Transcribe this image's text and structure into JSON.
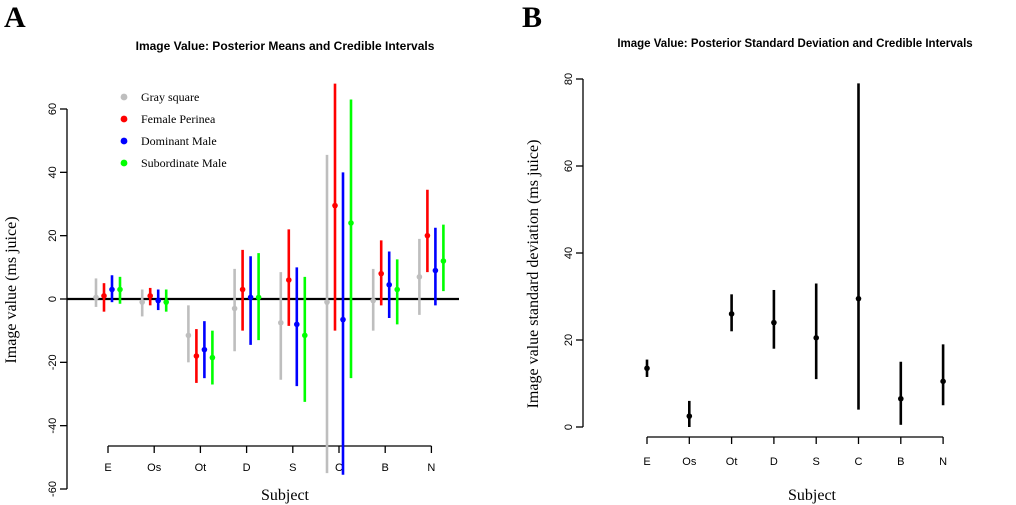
{
  "panels": {
    "left": "A",
    "right": "B"
  },
  "colors": {
    "gray_square": "#bebebe",
    "female_perinea": "#ff0000",
    "dominant_male": "#0000ff",
    "subordinate_male": "#00ff00",
    "black": "#000000"
  },
  "chart_data": [
    {
      "type": "scatter",
      "title": "Image Value: Posterior Means and Credible Intervals",
      "xlabel": "Subject",
      "ylabel": "Image value (ms juice)",
      "categories": [
        "E",
        "Os",
        "Ot",
        "D",
        "S",
        "C",
        "B",
        "N"
      ],
      "ylim": [
        -60,
        60
      ],
      "yticks": [
        -60,
        -40,
        -20,
        0,
        20,
        40,
        60
      ],
      "reference_line": 0,
      "legend_position": "top-left",
      "series": [
        {
          "name": "Gray square",
          "color": "#bebebe",
          "mean": [
            0.5,
            -1,
            -11.5,
            -3,
            -7.5,
            -1,
            -0.5,
            7
          ],
          "lower": [
            -2.5,
            -5.5,
            -20,
            -16.5,
            -25.5,
            -55,
            -10,
            -5
          ],
          "upper": [
            6.5,
            3,
            -2,
            9.5,
            8.5,
            45.5,
            9.5,
            19
          ]
        },
        {
          "name": "Female Perinea",
          "color": "#ff0000",
          "mean": [
            1,
            1,
            -18,
            3,
            6,
            29.5,
            8,
            20
          ],
          "lower": [
            -4,
            -2,
            -26.5,
            -10,
            -8.5,
            -10,
            -2,
            8.5
          ],
          "upper": [
            5,
            3.5,
            -9.5,
            15.5,
            22,
            68,
            18.5,
            34.5
          ]
        },
        {
          "name": "Dominant Male",
          "color": "#0000ff",
          "mean": [
            3,
            -0.5,
            -16,
            0.5,
            -8,
            -6.5,
            4.5,
            9
          ],
          "lower": [
            -1,
            -3.5,
            -25,
            -14.5,
            -27.5,
            -55.5,
            -6,
            -2
          ],
          "upper": [
            7.5,
            3,
            -7,
            13.5,
            10,
            40,
            15,
            22.5
          ]
        },
        {
          "name": "Subordinate Male",
          "color": "#00ff00",
          "mean": [
            3,
            -1,
            -18.5,
            0.5,
            -11.5,
            24,
            3,
            12
          ],
          "lower": [
            -1.5,
            -4,
            -27,
            -13,
            -32.5,
            -25,
            -8,
            2.5
          ],
          "upper": [
            7,
            3,
            -10,
            14.5,
            7,
            63,
            12.5,
            23.5
          ]
        }
      ]
    },
    {
      "type": "scatter",
      "title": "Image Value: Posterior Standard Deviation and Credible Intervals",
      "xlabel": "Subject",
      "ylabel": "Image value standard deviation (ms juice)",
      "categories": [
        "E",
        "Os",
        "Ot",
        "D",
        "S",
        "C",
        "B",
        "N"
      ],
      "ylim": [
        0,
        80
      ],
      "yticks": [
        0,
        20,
        40,
        60,
        80
      ],
      "series": [
        {
          "color": "#000000",
          "mean": [
            13.5,
            2.5,
            26,
            24,
            20.5,
            29.5,
            6.5,
            10.5
          ],
          "lower": [
            11.5,
            0,
            22,
            18,
            11,
            4,
            0.5,
            5
          ],
          "upper": [
            15.5,
            6,
            30.5,
            31.5,
            33,
            79,
            15,
            19
          ]
        }
      ]
    }
  ]
}
